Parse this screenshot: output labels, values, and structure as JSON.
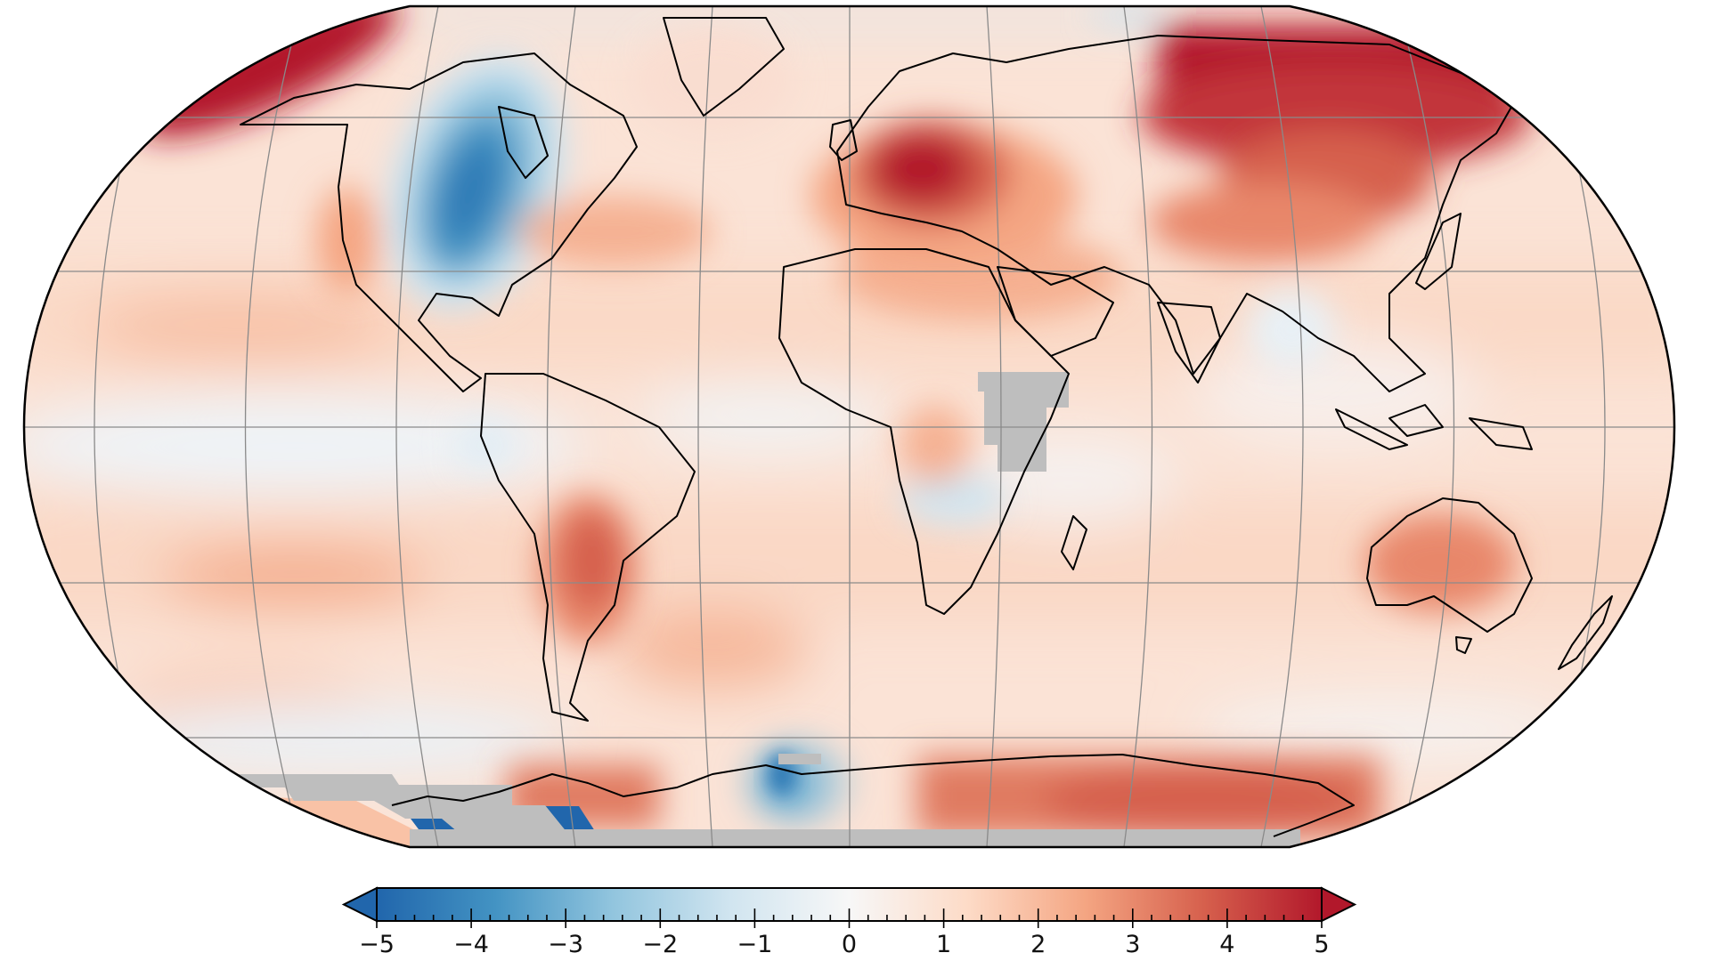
{
  "figure": {
    "type": "global temperature anomaly map",
    "projection": "Robinson",
    "units_note": "temperature anomaly (colorbar, no unit label shown)"
  },
  "colorbar": {
    "min": -5,
    "max": 5,
    "extend": "both",
    "tick_labels": [
      "−5",
      "−4",
      "−3",
      "−2",
      "−1",
      "0",
      "1",
      "2",
      "3",
      "4",
      "5"
    ],
    "minor_tick_step": 0.2,
    "colors": [
      "#2166ac",
      "#4393c3",
      "#92c5de",
      "#d1e5f0",
      "#f7f7f7",
      "#fddbc7",
      "#f4a582",
      "#d6604d",
      "#b2182b"
    ],
    "under_color": "#2166ac",
    "over_color": "#b2182b"
  },
  "missing_data_color": "#bebebe",
  "chart_data": {
    "type": "heatmap",
    "title": "",
    "xlabel": "",
    "ylabel": "",
    "colorbar_range": [
      -5,
      5
    ],
    "colorbar_ticks": [
      -5,
      -4,
      -3,
      -2,
      -1,
      0,
      1,
      2,
      3,
      4,
      5
    ],
    "graticule": {
      "parallels_deg": [
        -60,
        -30,
        0,
        30,
        60
      ],
      "meridians_deg": [
        -180,
        -150,
        -120,
        -90,
        -60,
        -30,
        0,
        30,
        60,
        90,
        120,
        150,
        180
      ]
    },
    "notable_regions": [
      {
        "region": "Central/Eastern Europe",
        "approx_anomaly": 5
      },
      {
        "region": "Northern Siberia / Russian Arctic",
        "approx_anomaly": 5
      },
      {
        "region": "Alaska / Bering region",
        "approx_anomaly": 5
      },
      {
        "region": "Central & Eastern North America (US/Canada)",
        "approx_anomaly": -4
      },
      {
        "region": "Mongolia / Northern China",
        "approx_anomaly": 3
      },
      {
        "region": "Southern South America (Paraguay/N Argentina)",
        "approx_anomaly": 3
      },
      {
        "region": "Central Australia",
        "approx_anomaly": 2.5
      },
      {
        "region": "East Antarctica",
        "approx_anomaly": 3
      },
      {
        "region": "Weddell Sea sector",
        "approx_anomaly": -4
      },
      {
        "region": "Ross/Amundsen sector patches",
        "approx_anomaly": -5
      },
      {
        "region": "Equatorial Pacific",
        "approx_anomaly": -0.3
      },
      {
        "region": "East Africa (Ethiopia/Kenya/Tanzania)",
        "approx_anomaly": null,
        "note": "missing data (gray)"
      }
    ]
  }
}
